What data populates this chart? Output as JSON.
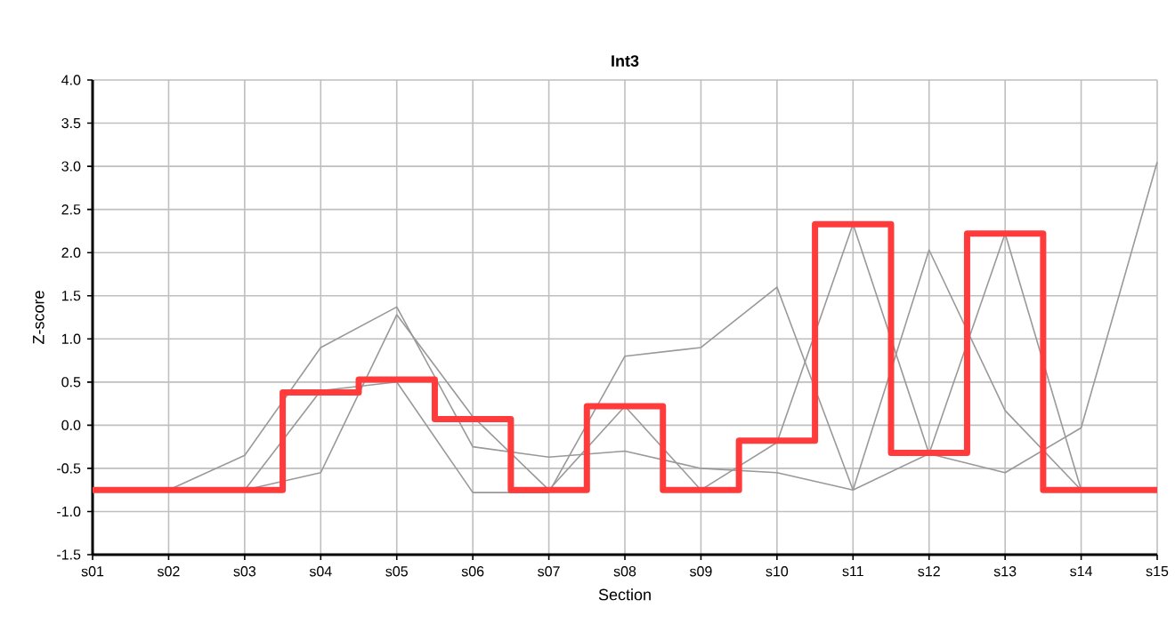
{
  "chart_data": {
    "type": "line",
    "title": "**Int3**",
    "xlabel": "Section",
    "ylabel": "Z-score",
    "categories": [
      "s01",
      "s02",
      "s03",
      "s04",
      "s05",
      "s06",
      "s07",
      "s08",
      "s09",
      "s10",
      "s11",
      "s12",
      "s13",
      "s14",
      "s15"
    ],
    "ylim": [
      -1.5,
      4.0
    ],
    "yticks": [
      {
        "value": -1.5,
        "label": "-1.5"
      },
      {
        "value": -1.0,
        "label": "-1.0"
      },
      {
        "value": -0.5,
        "label": "-0.5"
      },
      {
        "value": 0.0,
        "label": "0.0"
      },
      {
        "value": 0.5,
        "label": "0.5"
      },
      {
        "value": 1.0,
        "label": "1.0"
      },
      {
        "value": 1.5,
        "label": "1.5"
      },
      {
        "value": 2.0,
        "label": "2.0"
      },
      {
        "value": 2.5,
        "label": "2.5"
      },
      {
        "value": 3.0,
        "label": "3.0"
      },
      {
        "value": 3.5,
        "label": "3.5"
      },
      {
        "value": 4.0,
        "label": "4.0"
      }
    ],
    "grid": true,
    "marker": "none",
    "line_style": "solid",
    "series": [
      {
        "color": "#999999",
        "values": [
          -0.75,
          -0.75,
          -0.35,
          0.9,
          1.37,
          -0.25,
          -0.37,
          -0.3,
          -0.5,
          -0.55,
          -0.75,
          -0.33,
          -0.55,
          -0.03,
          3.05
        ]
      },
      {
        "color": "#999999",
        "values": [
          -0.75,
          -0.75,
          -0.75,
          0.4,
          0.5,
          -0.78,
          -0.78,
          0.8,
          0.9,
          1.6,
          -0.75,
          2.03,
          0.17,
          -0.75,
          -0.75
        ]
      },
      {
        "color": "#999999",
        "values": [
          -0.75,
          -0.75,
          -0.75,
          -0.55,
          1.28,
          0.1,
          -0.75,
          0.22,
          -0.75,
          -0.2,
          2.33,
          -0.33,
          2.22,
          -0.75,
          -0.75
        ]
      },
      {
        "type": "step",
        "color": "#ff3b3b",
        "values": [
          -0.75,
          -0.75,
          -0.75,
          0.38,
          0.53,
          0.07,
          -0.75,
          0.22,
          -0.75,
          -0.18,
          2.33,
          -0.32,
          2.22,
          -0.75,
          -0.75
        ]
      }
    ]
  }
}
